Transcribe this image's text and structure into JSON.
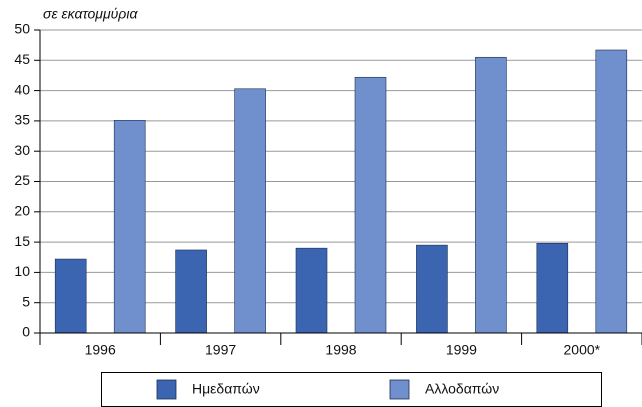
{
  "chart_data": {
    "type": "bar",
    "subtitle": "σε εκατομμύρια",
    "categories": [
      "1996",
      "1997",
      "1998",
      "1999",
      "2000*"
    ],
    "series": [
      {
        "name": "Ημεδαπών",
        "color": "#3b64b1",
        "values": [
          12.2,
          13.7,
          14.0,
          14.5,
          14.8
        ]
      },
      {
        "name": "Αλλοδαπών",
        "color": "#6f8fcd",
        "values": [
          35.1,
          40.3,
          42.2,
          45.5,
          46.7
        ]
      }
    ],
    "ylim": [
      0,
      50
    ],
    "yticks": [
      0,
      5,
      10,
      15,
      20,
      25,
      30,
      35,
      40,
      45,
      50
    ],
    "grid": true,
    "legend": "bottom"
  }
}
